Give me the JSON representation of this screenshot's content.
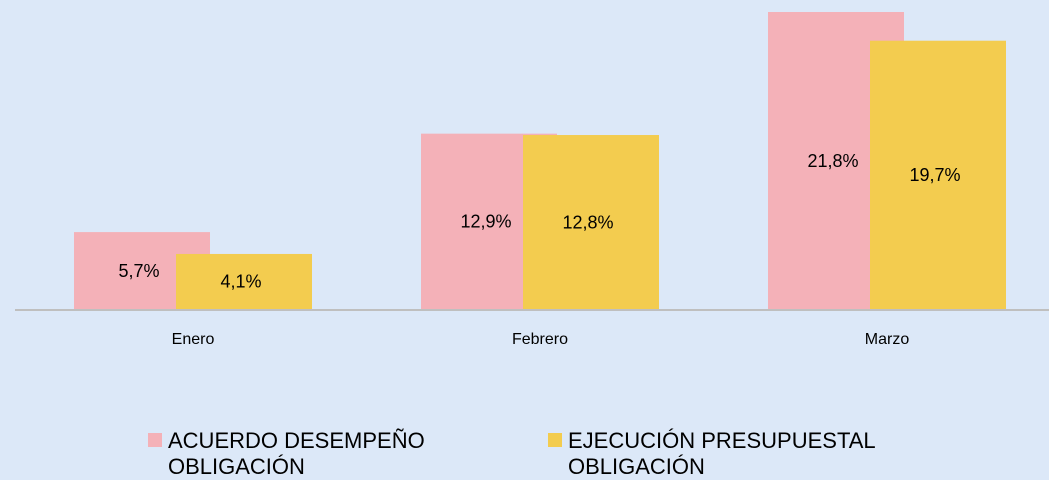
{
  "chart_data": {
    "type": "bar",
    "categories": [
      "Enero",
      "Febrero",
      "Marzo"
    ],
    "series": [
      {
        "name": "ACUERDO DESEMPEÑO OBLIGACIÓN",
        "color": "#f4b1b8",
        "values": [
          5.7,
          12.9,
          21.8
        ],
        "value_labels": [
          "5,7%",
          "12,9%",
          "21,8%"
        ]
      },
      {
        "name": "EJECUCIÓN PRESUPUESTAL OBLIGACIÓN",
        "color": "#f3cc4f",
        "values": [
          4.1,
          12.8,
          19.7
        ],
        "value_labels": [
          "4,1%",
          "12,8%",
          "19,7%"
        ]
      }
    ]
  }
}
